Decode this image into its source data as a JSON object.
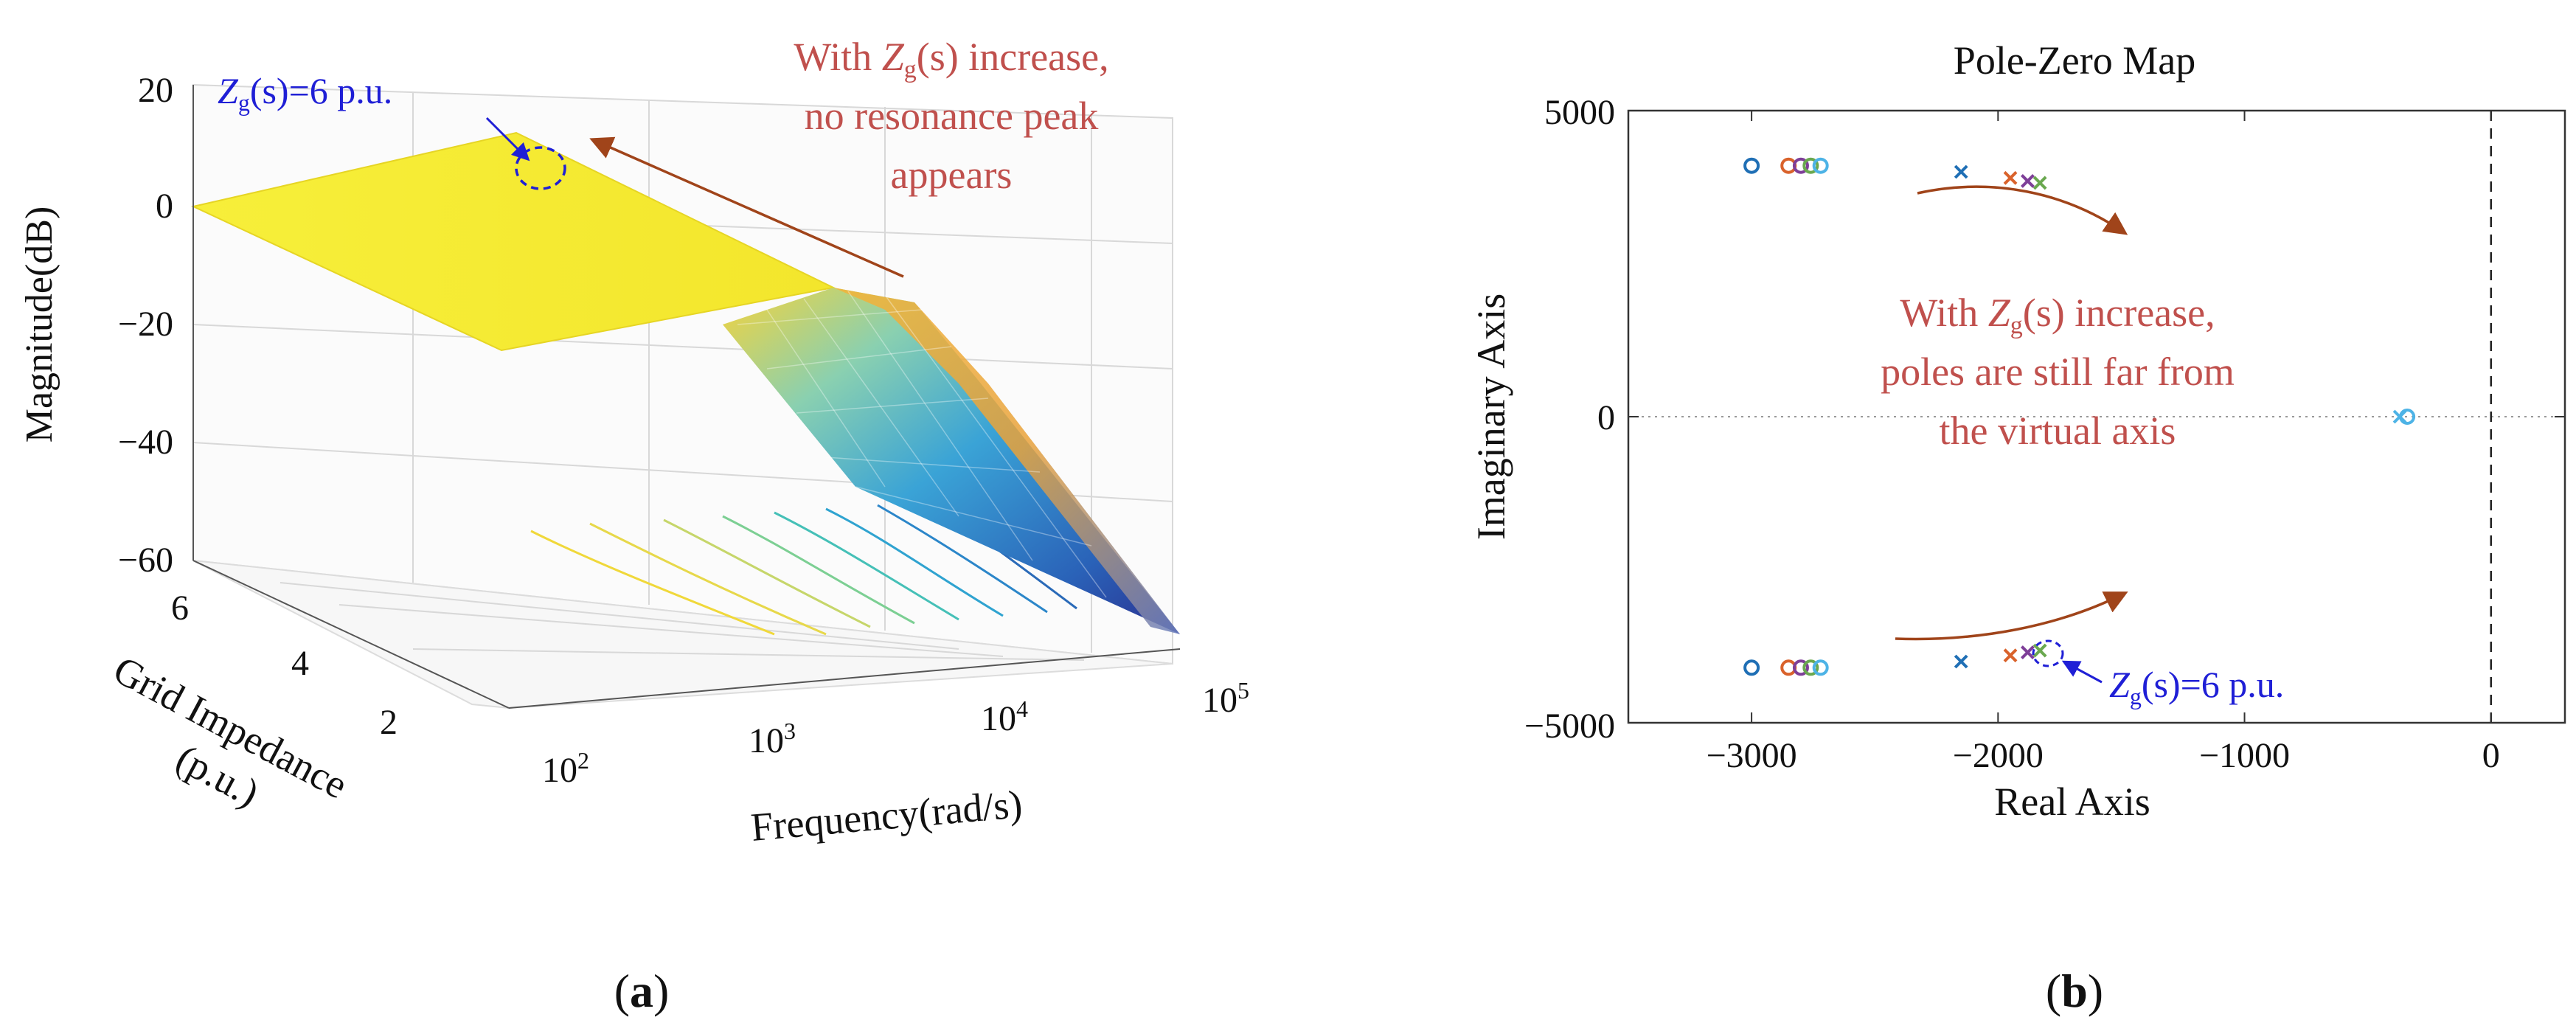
{
  "figure": {
    "caption_a": "(a)",
    "caption_b": "(b)",
    "colors": {
      "annotation_red": "#c0504d",
      "annotation_blue": "#1f1fd6",
      "arrow_brown": "#a0441a",
      "surface_top": "#f5eb2a",
      "surface_low": "#2b2f8f",
      "pole_blue": "#1f6fb5",
      "pole_orange": "#d9622b",
      "pole_purple": "#7e3f98",
      "pole_green": "#6aa84f",
      "pole_cyan": "#4db3e6"
    }
  },
  "chart_data": [
    {
      "type": "surface",
      "panel": "a",
      "title": "",
      "zlabel": "Magnitude(dB)",
      "xlabel": "Frequency(rad/s)",
      "ylabel_line1": "Grid Impedance",
      "ylabel_line2": "(p.u.)",
      "zlim": [
        -60,
        20
      ],
      "z_ticks": [
        "20",
        "0",
        "−20",
        "−40",
        "−60"
      ],
      "x_ticks": [
        "10",
        "10",
        "10",
        "10"
      ],
      "x_tick_exponents": [
        "2",
        "3",
        "4",
        "5"
      ],
      "x_range_rad_s": [
        100,
        100000
      ],
      "y_ticks": [
        "6",
        "4",
        "2"
      ],
      "y_range_pu": [
        0,
        6
      ],
      "surface": {
        "description_values": "flat about 0 dB at low frequency, roll-off beyond ~2500 rad/s to about -60 dB at 1e5 rad/s",
        "low_freq_magnitude_db": 0,
        "corner_frequency_rad_s": 2500,
        "high_freq_magnitude_db": -60
      },
      "annotations": {
        "marker_label_main": "Z",
        "marker_label_sub": "g",
        "marker_label_arg": "(s)",
        "marker_label_value": "=6 p.u.",
        "note_line1_prefix": "With ",
        "note_line1_var": "Z",
        "note_line1_sub": "g",
        "note_line1_arg": "(s)",
        "note_line1_suffix": " increase,",
        "note_line2": "no resonance peak",
        "note_line3": "appears"
      }
    },
    {
      "type": "scatter",
      "panel": "b",
      "title": "Pole-Zero Map",
      "xlabel": "Real Axis",
      "ylabel": "Imaginary Axis",
      "xlim": [
        -3500,
        300
      ],
      "ylim": [
        -5000,
        5000
      ],
      "x_ticks": [
        -3000,
        -2000,
        -1000,
        0
      ],
      "x_tick_labels": [
        "−3000",
        "−2000",
        "−1000",
        "0"
      ],
      "y_ticks": [
        5000,
        0,
        -5000
      ],
      "y_tick_labels": [
        "5000",
        "0",
        "−5000"
      ],
      "zeros": [
        {
          "x": -3000,
          "y": 4100
        },
        {
          "x": -2850,
          "y": 4100
        },
        {
          "x": -2800,
          "y": 4100
        },
        {
          "x": -2760,
          "y": 4100
        },
        {
          "x": -2720,
          "y": 4100
        },
        {
          "x": -3000,
          "y": -4100
        },
        {
          "x": -2850,
          "y": -4100
        },
        {
          "x": -2800,
          "y": -4100
        },
        {
          "x": -2760,
          "y": -4100
        },
        {
          "x": -2720,
          "y": -4100
        },
        {
          "x": -340,
          "y": 0
        }
      ],
      "poles": [
        {
          "x": -2150,
          "y": 4000
        },
        {
          "x": -1950,
          "y": 3900
        },
        {
          "x": -1880,
          "y": 3850
        },
        {
          "x": -1830,
          "y": 3820
        },
        {
          "x": -2150,
          "y": -4000
        },
        {
          "x": -1950,
          "y": -3900
        },
        {
          "x": -1880,
          "y": -3850
        },
        {
          "x": -1830,
          "y": -3820
        },
        {
          "x": -370,
          "y": 0
        }
      ],
      "annotations": {
        "note_line1_prefix": "With ",
        "note_line1_var": "Z",
        "note_line1_sub": "g",
        "note_line1_arg": "(s)",
        "note_line1_suffix": " increase,",
        "note_line2": "poles are still far from",
        "note_line3": "the virtual axis",
        "marker_label_main": "Z",
        "marker_label_sub": "g",
        "marker_label_arg": "(s)",
        "marker_label_value": "=6 p.u."
      }
    }
  ]
}
